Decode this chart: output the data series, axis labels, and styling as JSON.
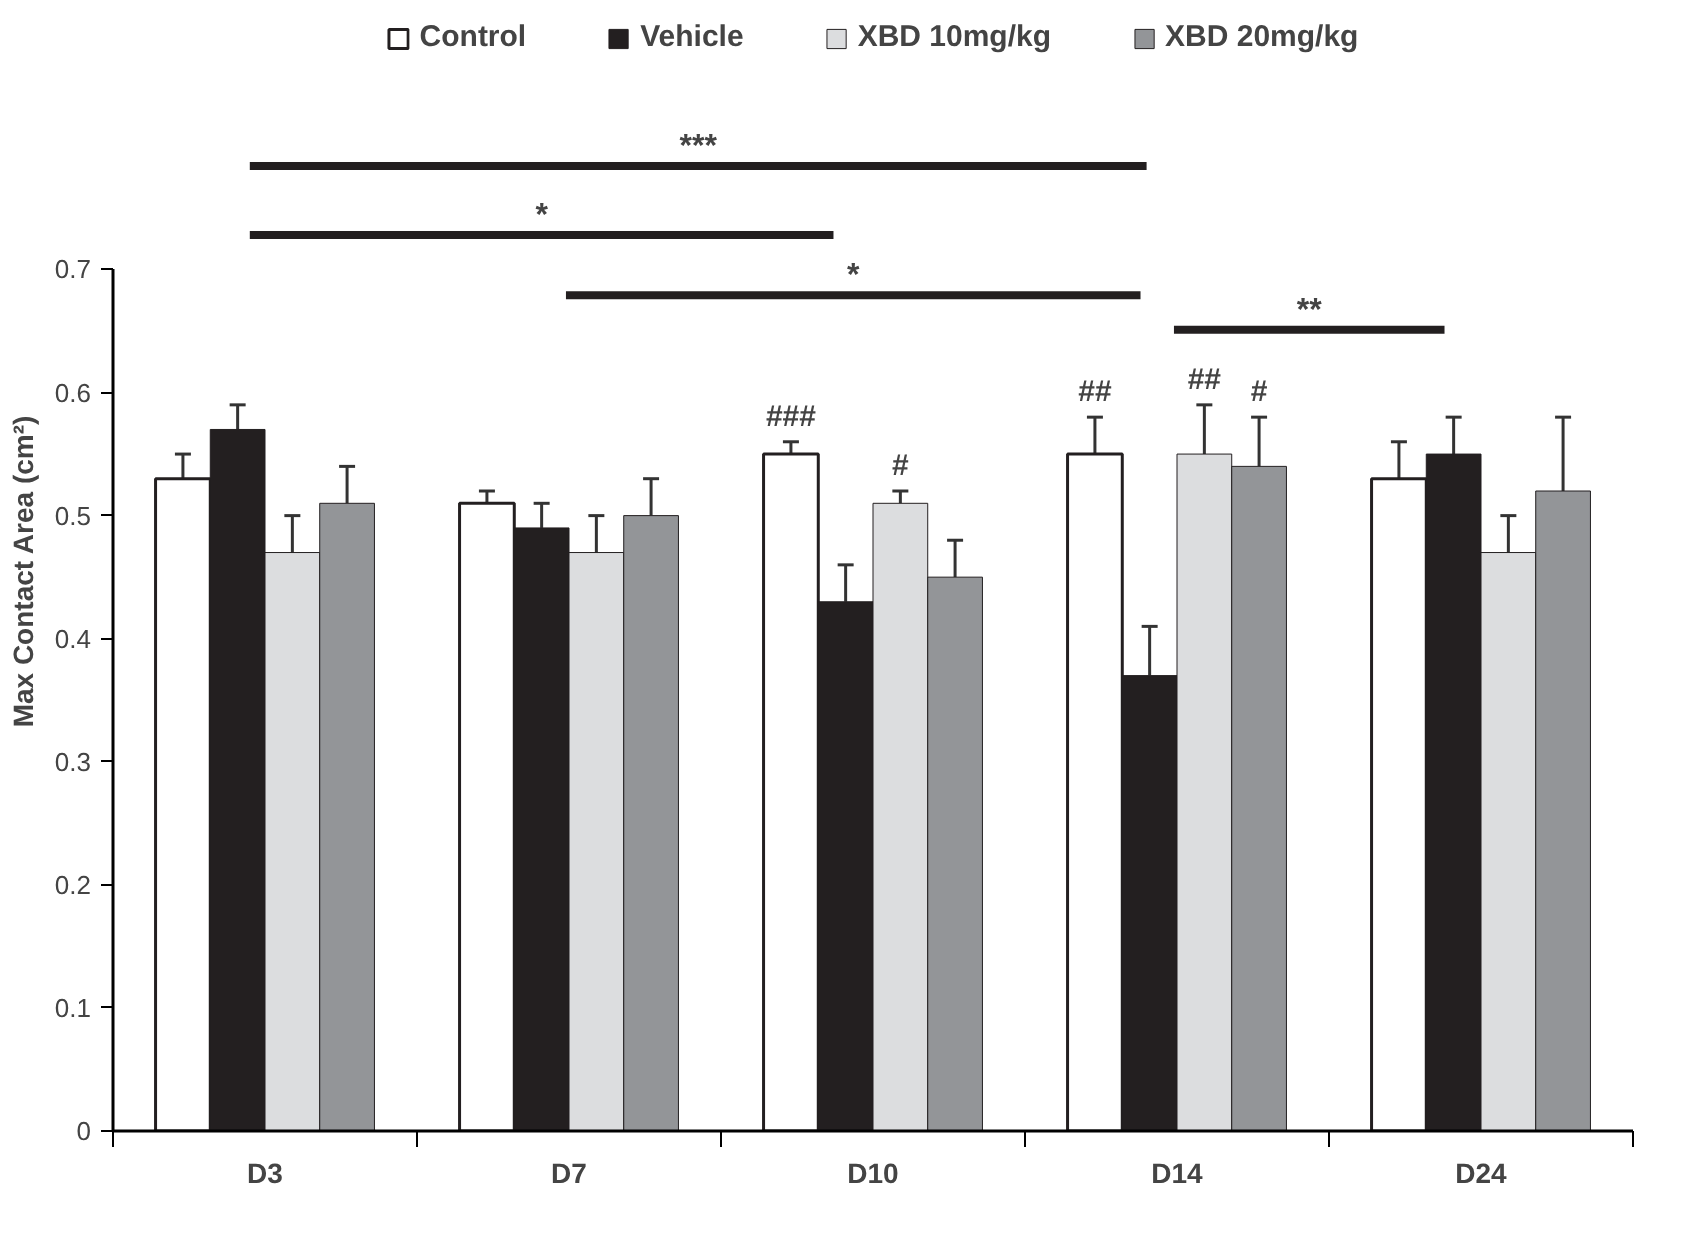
{
  "chart_data": {
    "type": "bar",
    "ylabel": "Max Contact Area (cm²)",
    "categories": [
      "D3",
      "D7",
      "D10",
      "D14",
      "D24"
    ],
    "series": [
      {
        "name": "Control",
        "color": "#ffffff",
        "values": [
          0.53,
          0.51,
          0.55,
          0.55,
          0.53
        ],
        "errors": [
          0.02,
          0.01,
          0.01,
          0.03,
          0.03
        ]
      },
      {
        "name": "Vehicle",
        "color": "#231f20",
        "values": [
          0.57,
          0.49,
          0.43,
          0.37,
          0.55
        ],
        "errors": [
          0.02,
          0.02,
          0.03,
          0.04,
          0.03
        ]
      },
      {
        "name": "XBD 10mg/kg",
        "color": "#dcdddf",
        "values": [
          0.47,
          0.47,
          0.51,
          0.55,
          0.47
        ],
        "errors": [
          0.03,
          0.03,
          0.01,
          0.04,
          0.03
        ]
      },
      {
        "name": "XBD 20mg/kg",
        "color": "#939598",
        "values": [
          0.51,
          0.5,
          0.45,
          0.54,
          0.52
        ],
        "errors": [
          0.03,
          0.03,
          0.03,
          0.04,
          0.06
        ]
      }
    ],
    "ylim": [
      0,
      0.7
    ],
    "yticks": [
      0,
      0.1,
      0.2,
      0.3,
      0.4,
      0.5,
      0.6,
      0.7
    ],
    "grid": false,
    "legend": "top",
    "annotations": [
      "***",
      "*",
      "*",
      "**",
      "###",
      "#",
      "##",
      "##",
      "#"
    ]
  }
}
